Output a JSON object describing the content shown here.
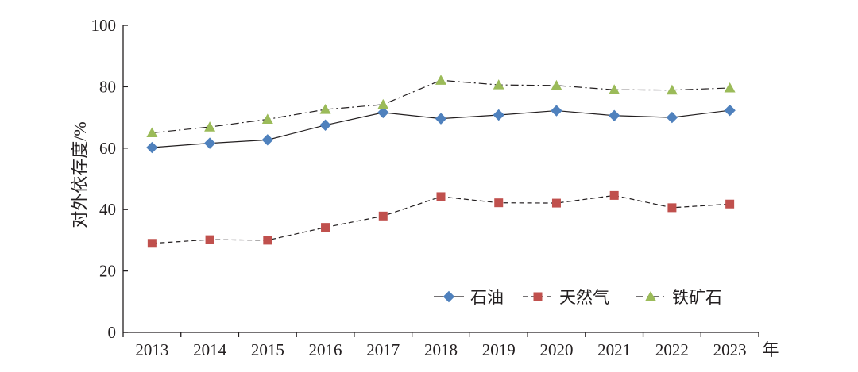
{
  "chart_data": {
    "type": "line",
    "xlabel": "年",
    "ylabel": "对外依存度/%",
    "ylim": [
      0,
      100
    ],
    "yticks": [
      0,
      20,
      40,
      60,
      80,
      100
    ],
    "x": [
      "2013",
      "2014",
      "2015",
      "2016",
      "2017",
      "2018",
      "2019",
      "2020",
      "2021",
      "2022",
      "2023"
    ],
    "grid": false,
    "legend_position": "bottom-right",
    "series": [
      {
        "name": "石油",
        "marker": "diamond",
        "line_style": "solid",
        "color": "#4f81bd",
        "values": [
          60.2,
          61.6,
          62.7,
          67.5,
          71.6,
          69.6,
          70.8,
          72.2,
          70.6,
          70.0,
          72.3
        ]
      },
      {
        "name": "天然气",
        "marker": "square",
        "line_style": "dashed",
        "color": "#c0504d",
        "values": [
          29.0,
          30.2,
          30.0,
          34.2,
          37.9,
          44.2,
          42.2,
          42.1,
          44.6,
          40.6,
          41.8
        ]
      },
      {
        "name": "铁矿石",
        "marker": "triangle",
        "line_style": "dash-dot",
        "color": "#9bbb59",
        "values": [
          65.0,
          66.9,
          69.4,
          72.6,
          74.2,
          82.1,
          80.6,
          80.4,
          79.0,
          78.9,
          79.6
        ]
      }
    ]
  }
}
